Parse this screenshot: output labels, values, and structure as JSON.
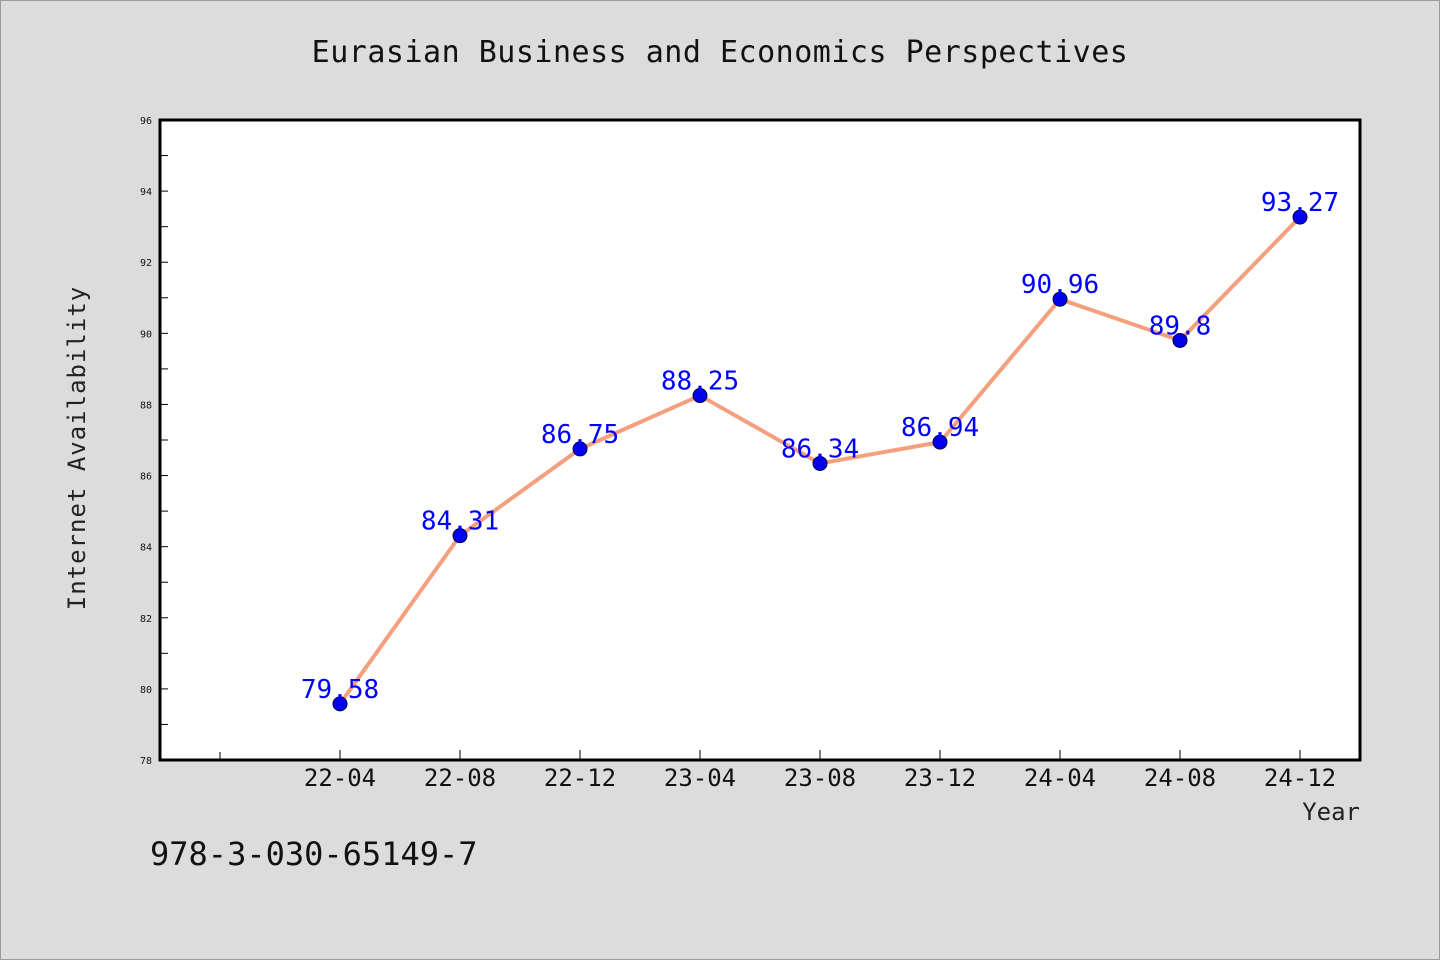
{
  "footer_text": "978-3-030-65149-7",
  "colors": {
    "line": "#f4a07e",
    "marker": "#0000ee",
    "label": "#0000ff",
    "background": "#dcdcdc",
    "plot_background": "#ffffff"
  },
  "chart_data": {
    "type": "line",
    "title": "Eurasian Business and Economics Perspectives",
    "xlabel": "Year",
    "ylabel": "Internet Availability",
    "categories": [
      "22-04",
      "22-08",
      "22-12",
      "23-04",
      "23-08",
      "23-12",
      "24-04",
      "24-08",
      "24-12"
    ],
    "series": [
      {
        "values": [
          79.58,
          84.31,
          86.75,
          88.25,
          86.34,
          86.94,
          90.96,
          89.8,
          93.27
        ],
        "labels": [
          "79.58",
          "84.31",
          "86.75",
          "88.25",
          "86.34",
          "86.94",
          "90.96",
          "89.8",
          "93.27"
        ]
      }
    ],
    "ylim": [
      78,
      96
    ],
    "yticks": [
      "78",
      "80",
      "82",
      "84",
      "86",
      "88",
      "90",
      "92",
      "94",
      "96"
    ],
    "grid": false,
    "legend": "none"
  }
}
